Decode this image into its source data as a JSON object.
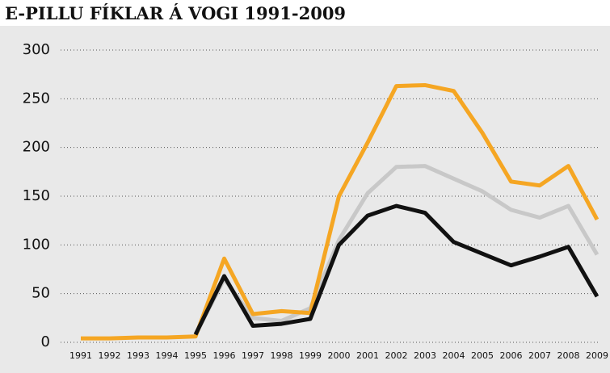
{
  "chart_data": {
    "type": "line",
    "title": "E-PILLU FÍKLAR Á VOGI 1991-2009",
    "categories": [
      "1991",
      "1992",
      "1993",
      "1994",
      "1995",
      "1996",
      "1997",
      "1998",
      "1999",
      "2000",
      "2001",
      "2002",
      "2003",
      "2004",
      "2005",
      "2006",
      "2007",
      "2008",
      "2009"
    ],
    "series": [
      {
        "color": "#c8c8c8",
        "values": [
          null,
          null,
          null,
          null,
          8,
          65,
          25,
          22,
          35,
          105,
          153,
          180,
          181,
          168,
          155,
          136,
          128,
          140,
          90
        ]
      },
      {
        "color": "#f5a623",
        "values": [
          4,
          4,
          5,
          5,
          6,
          86,
          29,
          32,
          30,
          150,
          205,
          263,
          264,
          258,
          215,
          165,
          161,
          181,
          126
        ]
      },
      {
        "color": "#111111",
        "values": [
          null,
          null,
          null,
          null,
          8,
          68,
          17,
          19,
          24,
          100,
          130,
          140,
          133,
          103,
          91,
          79,
          88,
          98,
          47
        ]
      }
    ],
    "ylim": [
      0,
      300
    ],
    "yticks": [
      0,
      50,
      100,
      150,
      200,
      250,
      300
    ],
    "grid": true
  }
}
